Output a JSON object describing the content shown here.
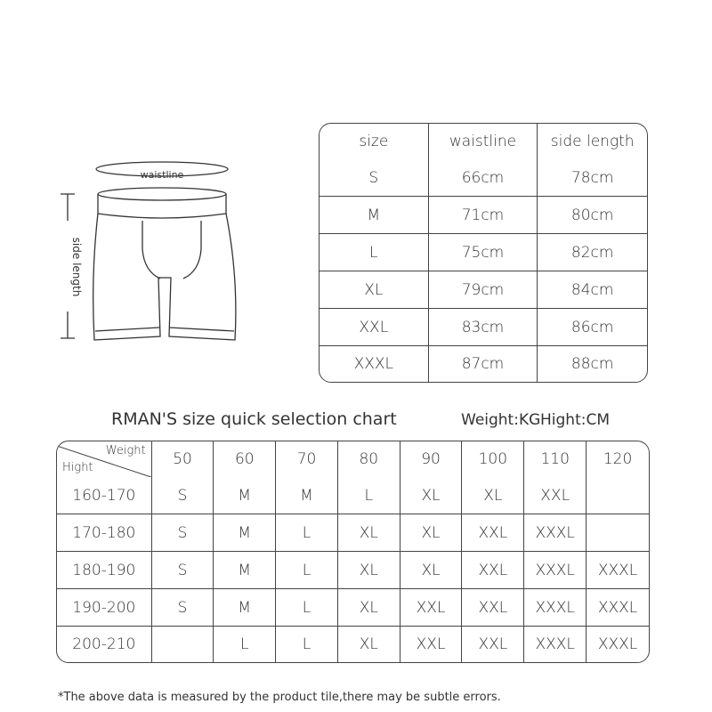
{
  "diagram": {
    "waist_label": "waistline",
    "side_label": "side length"
  },
  "size_table": {
    "headers": [
      "size",
      "waistline",
      "side length"
    ],
    "rows": [
      [
        "S",
        "66cm",
        "78cm"
      ],
      [
        "M",
        "71cm",
        "80cm"
      ],
      [
        "L",
        "75cm",
        "82cm"
      ],
      [
        "XL",
        "79cm",
        "84cm"
      ],
      [
        "XXL",
        "83cm",
        "86cm"
      ],
      [
        "XXXL",
        "87cm",
        "88cm"
      ]
    ]
  },
  "quick_chart": {
    "title": "RMAN'S size quick selection chart",
    "weight_unit": "Weight:KG",
    "height_unit": "Hight:CM",
    "corner_weight": "Weight",
    "corner_height": "Hight",
    "weights": [
      "50",
      "60",
      "70",
      "80",
      "90",
      "100",
      "110",
      "120"
    ],
    "rows": [
      {
        "height": "160-170",
        "sizes": [
          "S",
          "M",
          "M",
          "L",
          "XL",
          "XL",
          "XXL",
          ""
        ]
      },
      {
        "height": "170-180",
        "sizes": [
          "S",
          "M",
          "L",
          "XL",
          "XL",
          "XXL",
          "XXXL",
          ""
        ]
      },
      {
        "height": "180-190",
        "sizes": [
          "S",
          "M",
          "L",
          "XL",
          "XL",
          "XXL",
          "XXXL",
          "XXXL"
        ]
      },
      {
        "height": "190-200",
        "sizes": [
          "S",
          "M",
          "L",
          "XL",
          "XXL",
          "XXL",
          "XXXL",
          "XXXL"
        ]
      },
      {
        "height": "200-210",
        "sizes": [
          "",
          "L",
          "L",
          "XL",
          "XXL",
          "XXL",
          "XXXL",
          "XXXL"
        ]
      }
    ]
  },
  "footnote": "*The above data is measured by the product tile,there may be subtle errors."
}
